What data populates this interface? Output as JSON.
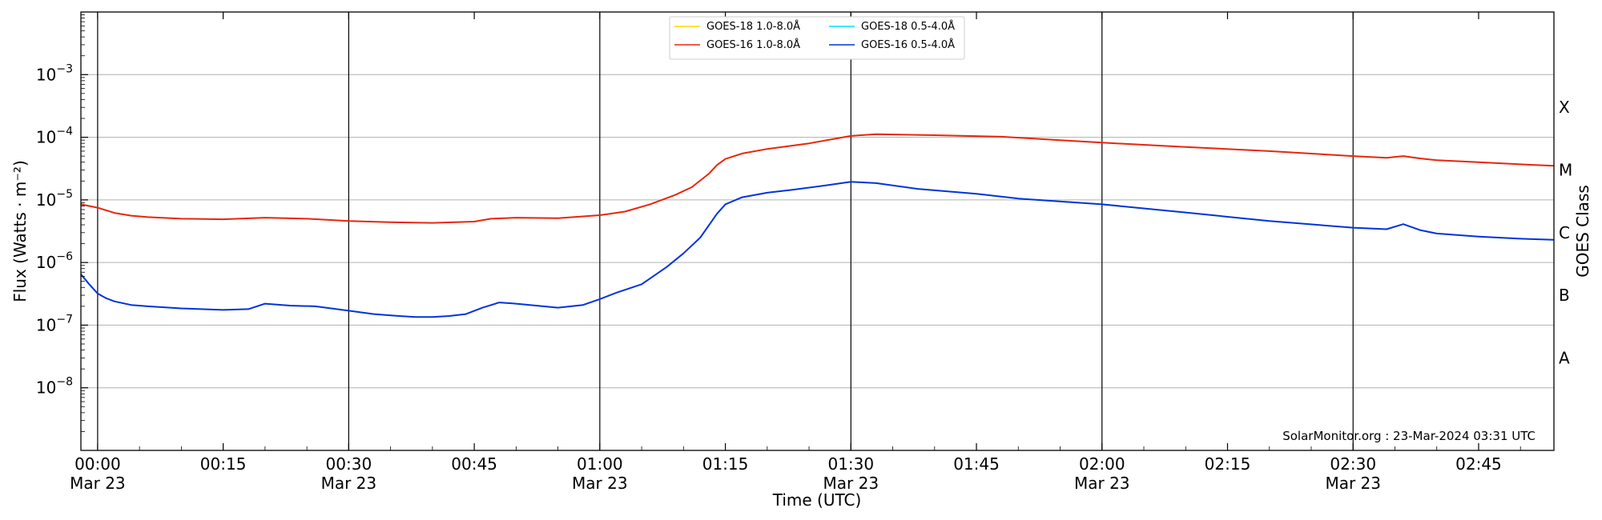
{
  "chart_data": {
    "type": "line",
    "xlabel": "Time (UTC)",
    "ylabel": "Flux (Watts · m⁻²)",
    "y2label": "GOES Class",
    "yscale": "log",
    "xlim": [
      "23:58",
      "02:54"
    ],
    "ylim": [
      1e-09,
      0.01
    ],
    "grid": "horizontal",
    "legend": "top-center",
    "credit": "SolarMonitor.org : 23-Mar-2024 03:31 UTC",
    "x_ticks": [
      {
        "time": "00:00",
        "date": "Mar 23"
      },
      {
        "time": "00:15",
        "date": ""
      },
      {
        "time": "00:30",
        "date": "Mar 23"
      },
      {
        "time": "00:45",
        "date": ""
      },
      {
        "time": "01:00",
        "date": "Mar 23"
      },
      {
        "time": "01:15",
        "date": ""
      },
      {
        "time": "01:30",
        "date": "Mar 23"
      },
      {
        "time": "01:45",
        "date": ""
      },
      {
        "time": "02:00",
        "date": "Mar 23"
      },
      {
        "time": "02:15",
        "date": ""
      },
      {
        "time": "02:30",
        "date": "Mar 23"
      },
      {
        "time": "02:45",
        "date": ""
      }
    ],
    "vlines": [
      "00:00",
      "00:30",
      "01:00",
      "01:30",
      "02:00",
      "02:30"
    ],
    "y_ticks": [
      {
        "value": 1e-08,
        "base": "10",
        "exp": "−8"
      },
      {
        "value": 1e-07,
        "base": "10",
        "exp": "−7"
      },
      {
        "value": 1e-06,
        "base": "10",
        "exp": "−6"
      },
      {
        "value": 1e-05,
        "base": "10",
        "exp": "−5"
      },
      {
        "value": 0.0001,
        "base": "10",
        "exp": "−4"
      },
      {
        "value": 0.001,
        "base": "10",
        "exp": "−3"
      }
    ],
    "class_labels": [
      {
        "label": "A",
        "value": 3e-08
      },
      {
        "label": "B",
        "value": 3e-07
      },
      {
        "label": "C",
        "value": 3e-06
      },
      {
        "label": "M",
        "value": 3e-05
      },
      {
        "label": "X",
        "value": 0.0003
      }
    ],
    "series": [
      {
        "name": "GOES-18 1.0-8.0Å",
        "color": "#ffd700",
        "x": [],
        "y": []
      },
      {
        "name": "GOES-16 1.0-8.0Å",
        "color": "#e8260a",
        "x": [
          "23:58",
          "00:00",
          "00:02",
          "00:04",
          "00:06",
          "00:10",
          "00:15",
          "00:20",
          "00:25",
          "00:30",
          "00:35",
          "00:40",
          "00:45",
          "00:47",
          "00:50",
          "00:55",
          "01:00",
          "01:03",
          "01:06",
          "01:09",
          "01:11",
          "01:13",
          "01:14",
          "01:15",
          "01:17",
          "01:20",
          "01:25",
          "01:30",
          "01:33",
          "01:40",
          "01:48",
          "01:55",
          "02:00",
          "02:10",
          "02:20",
          "02:30",
          "02:34",
          "02:36",
          "02:38",
          "02:40",
          "02:45",
          "02:50",
          "02:54"
        ],
        "y": [
          8.5e-06,
          7.5e-06,
          6.2e-06,
          5.6e-06,
          5.3e-06,
          5e-06,
          4.9e-06,
          5.2e-06,
          5e-06,
          4.6e-06,
          4.4e-06,
          4.3e-06,
          4.5e-06,
          5e-06,
          5.2e-06,
          5.1e-06,
          5.7e-06,
          6.5e-06,
          8.5e-06,
          1.2e-05,
          1.6e-05,
          2.6e-05,
          3.6e-05,
          4.5e-05,
          5.5e-05,
          6.5e-05,
          8e-05,
          0.000105,
          0.000112,
          0.000108,
          0.000102,
          9e-05,
          8.2e-05,
          7e-05,
          6e-05,
          5e-05,
          4.7e-05,
          5e-05,
          4.6e-05,
          4.3e-05,
          4e-05,
          3.7e-05,
          3.5e-05
        ]
      },
      {
        "name": "GOES-18 0.5-4.0Å",
        "color": "#00e0ff",
        "x": [],
        "y": []
      },
      {
        "name": "GOES-16 0.5-4.0Å",
        "color": "#0033dd",
        "x": [
          "23:58",
          "23:59",
          "00:00",
          "00:01",
          "00:02",
          "00:04",
          "00:06",
          "00:10",
          "00:15",
          "00:18",
          "00:20",
          "00:23",
          "00:26",
          "00:30",
          "00:33",
          "00:36",
          "00:38",
          "00:40",
          "00:42",
          "00:44",
          "00:46",
          "00:48",
          "00:50",
          "00:55",
          "00:58",
          "01:00",
          "01:02",
          "01:05",
          "01:08",
          "01:10",
          "01:12",
          "01:14",
          "01:15",
          "01:17",
          "01:20",
          "01:23",
          "01:27",
          "01:30",
          "01:33",
          "01:38",
          "01:45",
          "01:50",
          "02:00",
          "02:10",
          "02:20",
          "02:30",
          "02:34",
          "02:36",
          "02:38",
          "02:40",
          "02:45",
          "02:50",
          "02:54"
        ],
        "y": [
          6.5e-07,
          4.5e-07,
          3.2e-07,
          2.7e-07,
          2.4e-07,
          2.1e-07,
          2e-07,
          1.85e-07,
          1.75e-07,
          1.8e-07,
          2.2e-07,
          2.05e-07,
          2e-07,
          1.7e-07,
          1.5e-07,
          1.4e-07,
          1.35e-07,
          1.35e-07,
          1.4e-07,
          1.5e-07,
          1.9e-07,
          2.3e-07,
          2.2e-07,
          1.9e-07,
          2.1e-07,
          2.6e-07,
          3.3e-07,
          4.5e-07,
          8.5e-07,
          1.4e-06,
          2.5e-06,
          6e-06,
          8.5e-06,
          1.1e-05,
          1.3e-05,
          1.45e-05,
          1.7e-05,
          1.95e-05,
          1.85e-05,
          1.5e-05,
          1.25e-05,
          1.05e-05,
          8.5e-06,
          6.3e-06,
          4.6e-06,
          3.6e-06,
          3.4e-06,
          4.1e-06,
          3.3e-06,
          2.9e-06,
          2.6e-06,
          2.4e-06,
          2.3e-06
        ]
      }
    ]
  }
}
